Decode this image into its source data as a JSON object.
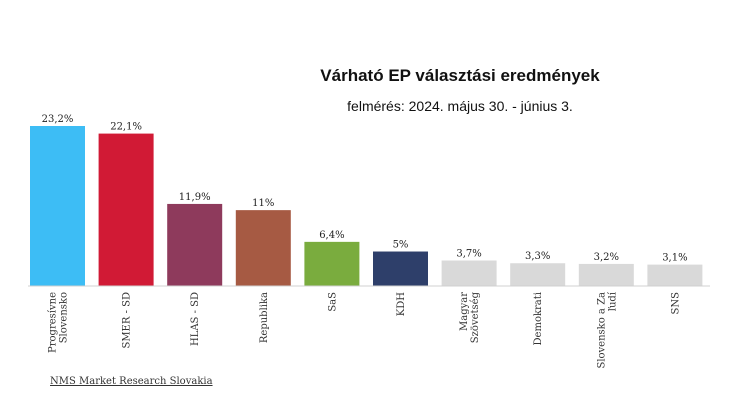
{
  "title": "Várható EP választási eredmények",
  "subtitle": "felmérés: 2024. május 30. - június 3.",
  "source": "NMS Market Research Slovakia",
  "chart_data": {
    "type": "bar",
    "categories": [
      "Progresívne Slovensko",
      "SMER - SD",
      "HLAS - SD",
      "Republika",
      "SaS",
      "KDH",
      "Magyar Szövetség",
      "Demokrati",
      "Slovensko a Za ľudí",
      "SNS"
    ],
    "category_lines": [
      [
        "Progresívne",
        "Slovensko"
      ],
      [
        "SMER - SD"
      ],
      [
        "HLAS - SD"
      ],
      [
        "Republika"
      ],
      [
        "SaS"
      ],
      [
        "KDH"
      ],
      [
        "Magyar",
        "Szövetség"
      ],
      [
        "Demokrati"
      ],
      [
        "Slovensko a Za",
        "ľudí"
      ],
      [
        "SNS"
      ]
    ],
    "values": [
      23.2,
      22.1,
      11.9,
      11,
      6.4,
      5,
      3.7,
      3.3,
      3.2,
      3.1
    ],
    "value_labels": [
      "23,2%",
      "22,1%",
      "11,9%",
      "11%",
      "6,4%",
      "5%",
      "3,7%",
      "3,3%",
      "3,2%",
      "3,1%"
    ],
    "colors": [
      "#3dbdf5",
      "#d11a35",
      "#8e3a5c",
      "#a65a43",
      "#7aac3e",
      "#2e3f6a",
      "#d9d9d9",
      "#d9d9d9",
      "#d9d9d9",
      "#d9d9d9"
    ],
    "ylim": [
      0,
      23.2
    ],
    "xlabel": "",
    "ylabel": "",
    "grid": false,
    "legend": "none"
  }
}
